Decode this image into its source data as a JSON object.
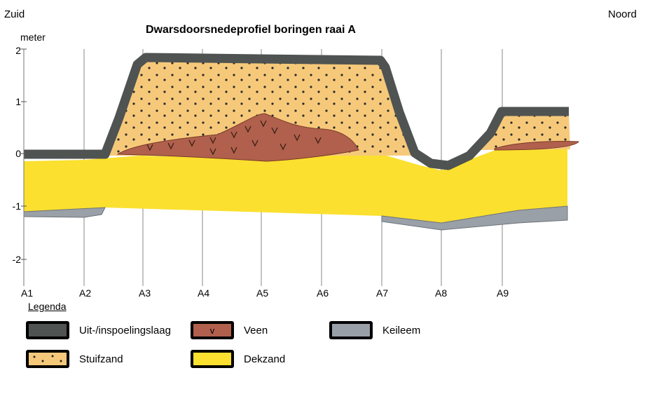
{
  "header": {
    "south": "Zuid",
    "north": "Noord",
    "title": "Dwarsdoorsnedeprofiel boringen raai A",
    "unit": "meter"
  },
  "y_axis": {
    "ticks": [
      "2",
      "1",
      "0",
      "-1",
      "-2"
    ],
    "range": [
      -2.5,
      2
    ]
  },
  "borings": [
    "A1",
    "A2",
    "A3",
    "A4",
    "A5",
    "A6",
    "A7",
    "A8",
    "A9"
  ],
  "legend": {
    "title": "Legenda",
    "items": [
      {
        "label": "Uit-/inspoelingslaag",
        "color": "#4f5351",
        "mark": ""
      },
      {
        "label": "Veen",
        "color": "#b0604c",
        "mark": "v"
      },
      {
        "label": "Keileem",
        "color": "#99a0a8",
        "mark": ""
      },
      {
        "label": "Stuifzand",
        "color": "#f6c97a",
        "mark": ""
      },
      {
        "label": "Dekzand",
        "color": "#fbe02f",
        "mark": ""
      }
    ]
  }
}
